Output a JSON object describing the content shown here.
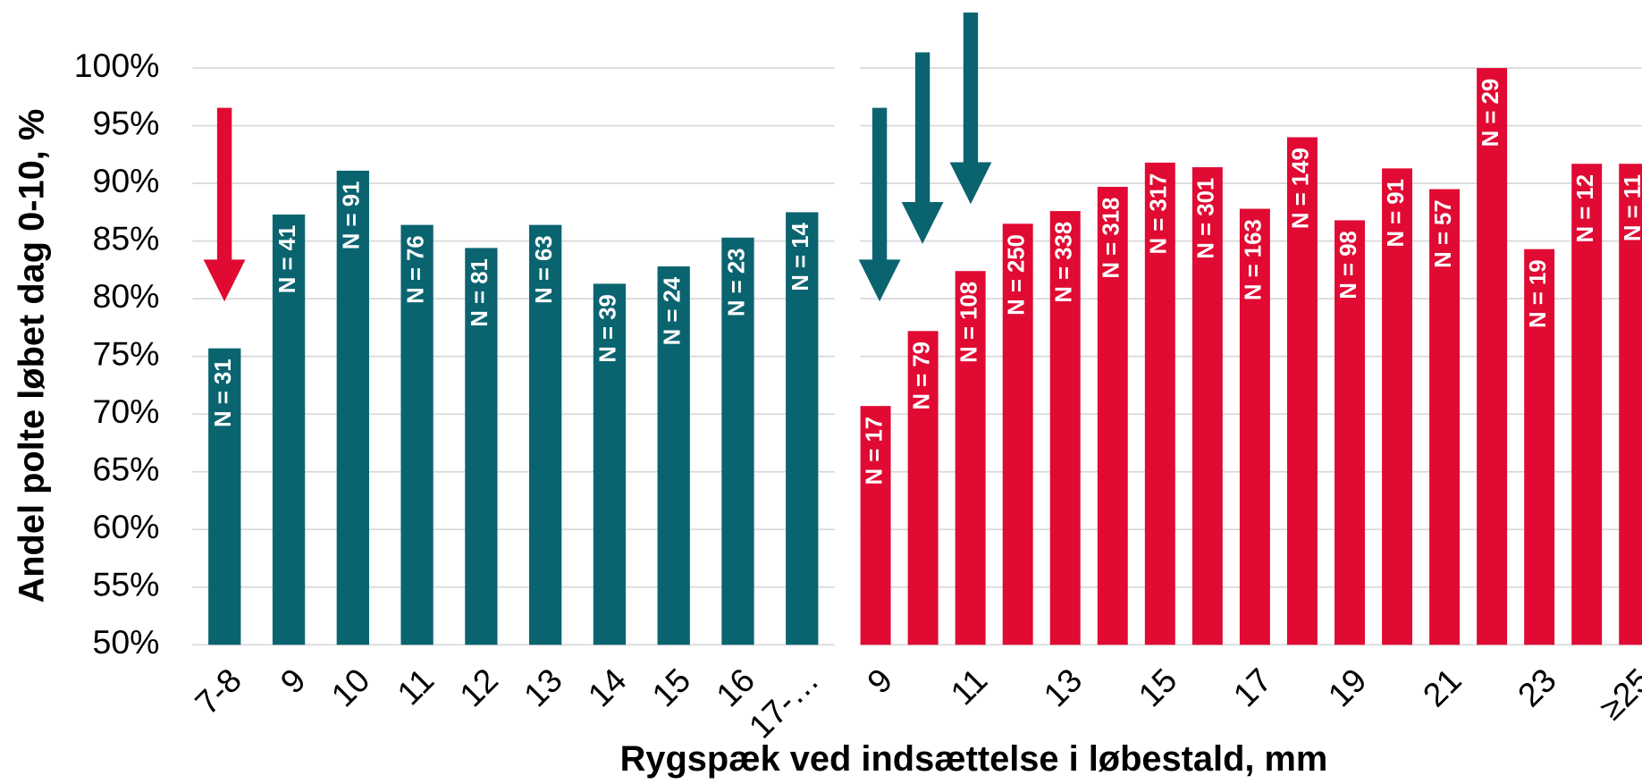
{
  "chart_data": [
    {
      "type": "bar",
      "ylabel": "Andel polte løbet dag 0-10, %",
      "color": "#0a6470",
      "categories": [
        "7-8",
        "9",
        "10",
        "11",
        "12",
        "13",
        "14",
        "15",
        "16",
        "17-…"
      ],
      "values": [
        75.7,
        87.3,
        91.1,
        86.4,
        84.4,
        86.4,
        81.3,
        82.8,
        85.3,
        87.5
      ],
      "annotations": [
        "N = 31",
        "N = 41",
        "N = 91",
        "N = 76",
        "N = 81",
        "N = 63",
        "N = 39",
        "N = 24",
        "N = 23",
        "N = 14"
      ],
      "ylim": [
        50,
        100
      ],
      "yticks": [
        {
          "value": 50,
          "label": "50%"
        },
        {
          "value": 55,
          "label": "55%"
        },
        {
          "value": 60,
          "label": "60%"
        },
        {
          "value": 65,
          "label": "65%"
        },
        {
          "value": 70,
          "label": "70%"
        },
        {
          "value": 75,
          "label": "75%"
        },
        {
          "value": 80,
          "label": "80%"
        },
        {
          "value": 85,
          "label": "85%"
        },
        {
          "value": 90,
          "label": "90%"
        },
        {
          "value": 95,
          "label": "95%"
        },
        {
          "value": 100,
          "label": "100%"
        }
      ],
      "grid": true
    },
    {
      "type": "bar",
      "xlabel": "Rygspæk ved indsættelse i løbestald, mm",
      "color": "#e00a33",
      "categories": [
        "9",
        null,
        "11",
        null,
        "13",
        null,
        "15",
        null,
        "17",
        null,
        "19",
        null,
        "21",
        null,
        "23",
        null,
        "≥25"
      ],
      "values": [
        70.7,
        77.2,
        82.4,
        86.5,
        87.6,
        89.7,
        91.8,
        91.4,
        87.8,
        94.0,
        86.8,
        91.3,
        89.5,
        100,
        84.3,
        91.7,
        91.7
      ],
      "annotations": [
        "N = 17",
        "N = 79",
        "N = 108",
        "N = 250",
        "N = 338",
        "N = 318",
        "N = 317",
        "N = 301",
        "N = 163",
        "N = 149",
        "N = 98",
        "N = 91",
        "N = 57",
        "N = 29",
        "N = 19",
        "N = 12",
        "N = 11"
      ],
      "ylim": [
        50,
        100
      ],
      "grid": true
    }
  ]
}
